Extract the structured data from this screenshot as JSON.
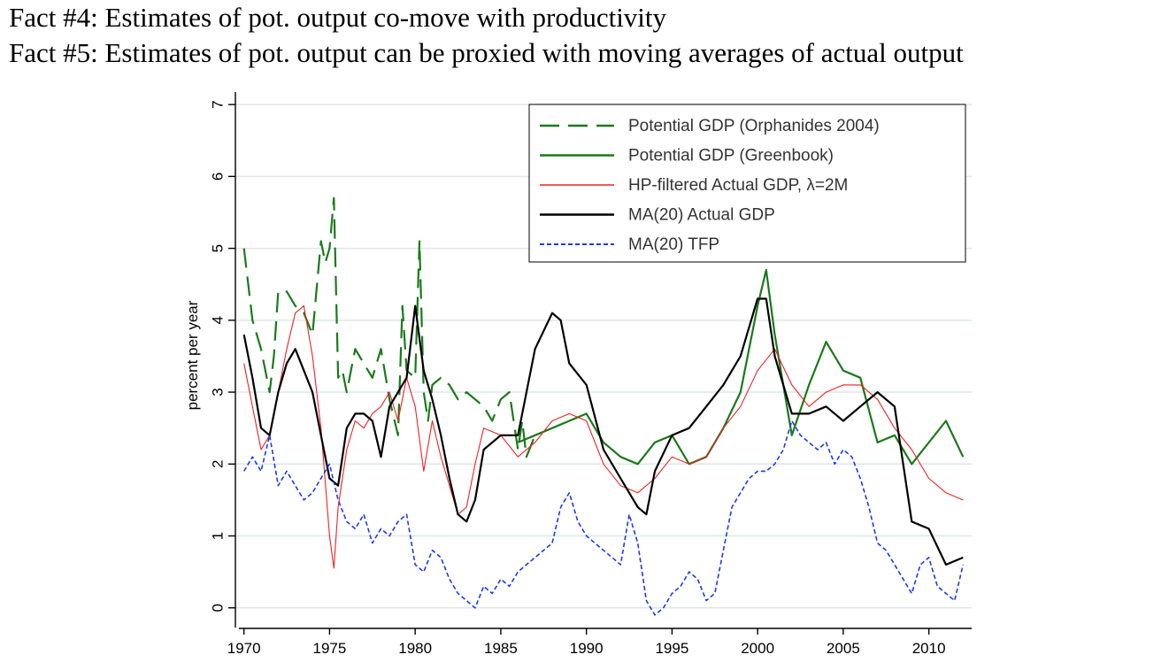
{
  "headings": [
    "Fact #4: Estimates of pot. output co-move with productivity",
    "Fact #5: Estimates of pot. output can be proxied with moving averages of actual output"
  ],
  "chart_data": {
    "type": "line",
    "title": "",
    "xlabel": "",
    "ylabel": "percent per year",
    "xlim": [
      1969.5,
      2012.5
    ],
    "ylim": [
      -0.2,
      7.1
    ],
    "xticks": [
      1970,
      1975,
      1980,
      1985,
      1990,
      1995,
      2000,
      2005,
      2010
    ],
    "yticks": [
      0,
      1,
      2,
      3,
      4,
      5,
      6,
      7
    ],
    "grid": true,
    "legend_position": "top-right",
    "series": [
      {
        "name": "Potential GDP (Orphanides 2004)",
        "color": "#1a7a1a",
        "style": "longdash",
        "x": [
          1970,
          1970.5,
          1971,
          1971.5,
          1971.75,
          1972,
          1972.5,
          1973,
          1973.5,
          1974,
          1974.5,
          1974.75,
          1975,
          1975.25,
          1975.5,
          1975.75,
          1976,
          1976.5,
          1977,
          1977.5,
          1978,
          1978.5,
          1979,
          1979.25,
          1979.5,
          1980,
          1980.25,
          1980.5,
          1980.75,
          1981,
          1981.5,
          1982,
          1982.5,
          1983,
          1983.5,
          1984,
          1984.5,
          1985,
          1985.5,
          1986,
          1986.25,
          1986.5,
          1987
        ],
        "y": [
          5.0,
          4.0,
          3.6,
          3.0,
          3.5,
          4.4,
          4.4,
          4.2,
          4.1,
          3.8,
          5.1,
          4.8,
          5.0,
          5.7,
          3.2,
          3.3,
          3.0,
          3.6,
          3.4,
          3.2,
          3.6,
          2.9,
          2.4,
          4.2,
          3.3,
          3.2,
          5.1,
          3.0,
          2.6,
          3.1,
          3.2,
          3.1,
          2.9,
          3.0,
          2.9,
          2.8,
          2.6,
          2.9,
          3.0,
          2.2,
          2.6,
          2.1,
          2.4
        ]
      },
      {
        "name": "Potential GDP (Greenbook)",
        "color": "#1a7a1a",
        "style": "solid",
        "x": [
          1986,
          1987,
          1988,
          1989,
          1990,
          1991,
          1992,
          1993,
          1994,
          1995,
          1996,
          1997,
          1998,
          1999,
          2000,
          2000.5,
          2001,
          2002,
          2003,
          2004,
          2005,
          2006,
          2007,
          2008,
          2009,
          2010,
          2011,
          2012
        ],
        "y": [
          2.3,
          2.4,
          2.5,
          2.6,
          2.7,
          2.3,
          2.1,
          2.0,
          2.3,
          2.4,
          2.0,
          2.1,
          2.5,
          3.0,
          4.2,
          4.7,
          3.8,
          2.4,
          3.1,
          3.7,
          3.3,
          3.2,
          2.3,
          2.4,
          2.0,
          2.3,
          2.6,
          2.1
        ]
      },
      {
        "name": "HP-filtered Actual GDP, λ=2M",
        "color": "#ee2222",
        "style": "solid",
        "x": [
          1970,
          1970.5,
          1971,
          1971.5,
          1972,
          1972.5,
          1973,
          1973.5,
          1974,
          1974.5,
          1975,
          1975.25,
          1975.5,
          1976,
          1976.5,
          1977,
          1977.5,
          1978,
          1978.5,
          1979,
          1979.5,
          1980,
          1980.5,
          1981,
          1981.5,
          1982,
          1982.5,
          1983,
          1983.5,
          1984,
          1985,
          1986,
          1987,
          1988,
          1989,
          1990,
          1991,
          1992,
          1993,
          1994,
          1995,
          1996,
          1997,
          1998,
          1999,
          2000,
          2001,
          2002,
          2003,
          2004,
          2005,
          2006,
          2007,
          2008,
          2009,
          2010,
          2011,
          2012
        ],
        "y": [
          3.4,
          2.8,
          2.2,
          2.4,
          3.0,
          3.6,
          4.1,
          4.2,
          3.5,
          2.5,
          1.0,
          0.55,
          1.4,
          2.2,
          2.6,
          2.5,
          2.7,
          2.8,
          3.0,
          2.6,
          3.2,
          2.8,
          1.9,
          2.6,
          2.1,
          1.7,
          1.3,
          1.4,
          2.0,
          2.5,
          2.4,
          2.1,
          2.3,
          2.6,
          2.7,
          2.6,
          2.0,
          1.7,
          1.6,
          1.8,
          2.1,
          2.0,
          2.1,
          2.5,
          2.8,
          3.3,
          3.6,
          3.1,
          2.8,
          3.0,
          3.1,
          3.1,
          2.9,
          2.5,
          2.2,
          1.8,
          1.6,
          1.5
        ]
      },
      {
        "name": "MA(20) Actual GDP",
        "color": "#000000",
        "style": "solid",
        "x": [
          1970,
          1970.5,
          1971,
          1971.5,
          1972,
          1972.5,
          1973,
          1973.5,
          1974,
          1974.5,
          1975,
          1975.5,
          1976,
          1976.5,
          1977,
          1977.5,
          1978,
          1978.5,
          1979,
          1979.5,
          1980,
          1980.5,
          1981,
          1981.5,
          1982,
          1982.5,
          1983,
          1983.5,
          1984,
          1985,
          1986,
          1987,
          1988,
          1988.5,
          1989,
          1990,
          1991,
          1992,
          1993,
          1993.5,
          1994,
          1995,
          1996,
          1997,
          1998,
          1999,
          2000,
          2000.5,
          2001,
          2002,
          2003,
          2004,
          2005,
          2006,
          2007,
          2008,
          2009,
          2010,
          2011,
          2012
        ],
        "y": [
          3.8,
          3.2,
          2.5,
          2.4,
          3.0,
          3.4,
          3.6,
          3.3,
          3.0,
          2.4,
          1.8,
          1.7,
          2.5,
          2.7,
          2.7,
          2.6,
          2.1,
          2.8,
          3.0,
          3.2,
          4.2,
          3.3,
          2.9,
          2.4,
          1.8,
          1.3,
          1.2,
          1.5,
          2.2,
          2.4,
          2.4,
          3.6,
          4.1,
          4.0,
          3.4,
          3.1,
          2.2,
          1.8,
          1.4,
          1.3,
          1.9,
          2.4,
          2.5,
          2.8,
          3.1,
          3.5,
          4.3,
          4.3,
          3.5,
          2.7,
          2.7,
          2.8,
          2.6,
          2.8,
          3.0,
          2.8,
          1.2,
          1.1,
          0.6,
          0.7
        ]
      },
      {
        "name": "MA(20) TFP",
        "color": "#1a3aee",
        "style": "shortdash",
        "x": [
          1970,
          1970.5,
          1971,
          1971.5,
          1972,
          1972.5,
          1973,
          1973.5,
          1974,
          1974.5,
          1975,
          1975.5,
          1976,
          1976.5,
          1977,
          1977.5,
          1978,
          1978.5,
          1979,
          1979.5,
          1980,
          1980.5,
          1981,
          1981.5,
          1982,
          1982.5,
          1983,
          1983.5,
          1984,
          1984.5,
          1985,
          1985.5,
          1986,
          1986.5,
          1987,
          1987.5,
          1988,
          1988.5,
          1989,
          1989.5,
          1990,
          1990.5,
          1991,
          1991.5,
          1992,
          1992.5,
          1993,
          1993.5,
          1994,
          1994.5,
          1995,
          1995.5,
          1996,
          1996.5,
          1997,
          1997.5,
          1998,
          1998.5,
          1999,
          1999.5,
          2000,
          2000.5,
          2001,
          2001.5,
          2002,
          2002.5,
          2003,
          2003.5,
          2004,
          2004.5,
          2005,
          2005.5,
          2006,
          2006.5,
          2007,
          2007.5,
          2008,
          2008.5,
          2009,
          2009.5,
          2010,
          2010.5,
          2011,
          2011.5,
          2012
        ],
        "y": [
          1.9,
          2.1,
          1.9,
          2.4,
          1.7,
          1.9,
          1.7,
          1.5,
          1.6,
          1.8,
          2.0,
          1.5,
          1.2,
          1.1,
          1.3,
          0.9,
          1.1,
          1.0,
          1.2,
          1.3,
          0.6,
          0.5,
          0.8,
          0.7,
          0.4,
          0.2,
          0.1,
          0.0,
          0.3,
          0.2,
          0.4,
          0.3,
          0.5,
          0.6,
          0.7,
          0.8,
          0.9,
          1.4,
          1.6,
          1.2,
          1.0,
          0.9,
          0.8,
          0.7,
          0.6,
          1.3,
          0.9,
          0.1,
          -0.1,
          0.0,
          0.2,
          0.3,
          0.5,
          0.4,
          0.1,
          0.2,
          0.8,
          1.4,
          1.6,
          1.8,
          1.9,
          1.9,
          2.0,
          2.2,
          2.6,
          2.4,
          2.3,
          2.2,
          2.3,
          2.0,
          2.2,
          2.1,
          1.8,
          1.4,
          0.9,
          0.8,
          0.6,
          0.4,
          0.2,
          0.6,
          0.7,
          0.3,
          0.2,
          0.1,
          0.6
        ]
      }
    ]
  }
}
